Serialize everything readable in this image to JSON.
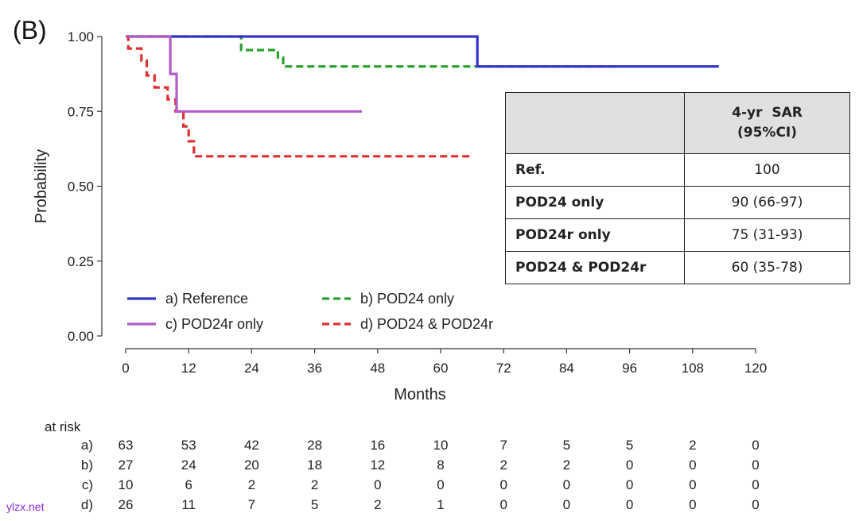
{
  "panel_label": "(B)",
  "watermark": "ylzx.net",
  "colors": {
    "reference": "#3333cc",
    "pod24_only": "#2ca02c",
    "pod24r_only": "#b35cc8",
    "pod24_and_pod24r": "#e03030"
  },
  "chart_data": {
    "type": "line",
    "subtype": "kaplan-meier step",
    "xlabel": "Months",
    "ylabel": "Probability",
    "xlim": [
      0,
      120
    ],
    "ylim": [
      0,
      1
    ],
    "x_ticks": [
      "0",
      "12",
      "24",
      "36",
      "48",
      "60",
      "72",
      "84",
      "96",
      "108",
      "120"
    ],
    "y_ticks": [
      "0.00",
      "0.25",
      "0.50",
      "0.75",
      "1.00"
    ],
    "legend_position": "bottom-left",
    "series": [
      {
        "name": "a) Reference",
        "key": "reference",
        "dashed": false,
        "x": [
          0,
          67,
          67,
          113
        ],
        "y": [
          1.0,
          1.0,
          0.9,
          0.9
        ]
      },
      {
        "name": "b) POD24 only",
        "key": "pod24_only",
        "dashed": true,
        "x": [
          0,
          22,
          22,
          29,
          29,
          30,
          30,
          94
        ],
        "y": [
          1.0,
          1.0,
          0.955,
          0.955,
          0.93,
          0.93,
          0.9,
          0.9
        ]
      },
      {
        "name": "c) POD24r only",
        "key": "pod24r_only",
        "dashed": false,
        "x": [
          0,
          8.5,
          8.5,
          9.7,
          9.7,
          45
        ],
        "y": [
          1.0,
          1.0,
          0.875,
          0.875,
          0.75,
          0.75
        ]
      },
      {
        "name": "d) POD24 & POD24r",
        "key": "pod24_and_pod24r",
        "dashed": true,
        "x": [
          0,
          0.5,
          0.5,
          3,
          3,
          4,
          4,
          5.5,
          5.5,
          8,
          8,
          9.5,
          9.5,
          11,
          11,
          12,
          12,
          13,
          13,
          66
        ],
        "y": [
          1.0,
          1.0,
          0.96,
          0.96,
          0.92,
          0.92,
          0.87,
          0.87,
          0.83,
          0.83,
          0.79,
          0.79,
          0.75,
          0.75,
          0.7,
          0.7,
          0.65,
          0.65,
          0.6,
          0.6
        ]
      }
    ],
    "table": {
      "header": [
        "",
        "4-yr  SAR",
        "(95%CI)"
      ],
      "rows": [
        {
          "group": "Ref.",
          "value": "100"
        },
        {
          "group": "POD24 only",
          "value": "90 (66-97)"
        },
        {
          "group": "POD24r only",
          "value": "75 (31-93)"
        },
        {
          "group": "POD24 & POD24r",
          "value": "60 (35-78)"
        }
      ]
    },
    "at_risk": {
      "title": "at risk",
      "times": [
        0,
        12,
        24,
        36,
        48,
        60,
        72,
        84,
        96,
        108,
        120
      ],
      "rows": [
        {
          "label": "a)",
          "values": [
            "63",
            "53",
            "42",
            "28",
            "16",
            "10",
            "7",
            "5",
            "5",
            "2",
            "0"
          ]
        },
        {
          "label": "b)",
          "values": [
            "27",
            "24",
            "20",
            "18",
            "12",
            "8",
            "2",
            "2",
            "0",
            "0",
            "0"
          ]
        },
        {
          "label": "c)",
          "values": [
            "10",
            "6",
            "2",
            "2",
            "0",
            "0",
            "0",
            "0",
            "0",
            "0",
            "0"
          ]
        },
        {
          "label": "d)",
          "values": [
            "26",
            "11",
            "7",
            "5",
            "2",
            "1",
            "0",
            "0",
            "0",
            "0",
            "0"
          ]
        }
      ]
    }
  }
}
